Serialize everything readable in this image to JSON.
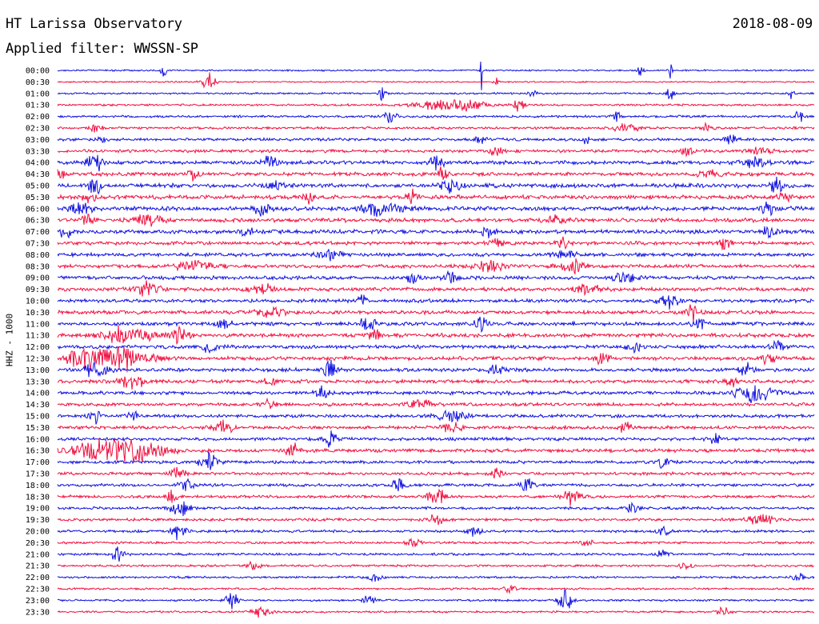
{
  "header": {
    "title": "HT Larissa Observatory",
    "date": "2018-08-09",
    "filter": "Applied filter: WWSSN-SP"
  },
  "chart_data": {
    "type": "line",
    "title": "HT Larissa Observatory",
    "ylabel": "HHZ - 1000",
    "xlabel": "",
    "grid": false,
    "legend": "none",
    "colors": {
      "even_row": "#1010e0",
      "odd_row": "#f01040"
    },
    "rows": [
      {
        "label": "00:00",
        "color": "blue",
        "noise": 0.9,
        "events": [
          [
            0.14,
            12,
            0.4
          ],
          [
            0.56,
            30,
            0.15
          ],
          [
            0.77,
            10,
            0.5
          ],
          [
            0.81,
            14,
            0.3
          ]
        ]
      },
      {
        "label": "00:30",
        "color": "red",
        "noise": 0.8,
        "events": [
          [
            0.2,
            14,
            1.0
          ],
          [
            0.58,
            6,
            0.4
          ]
        ]
      },
      {
        "label": "01:00",
        "color": "blue",
        "noise": 1.0,
        "events": [
          [
            0.43,
            20,
            0.5
          ],
          [
            0.63,
            6,
            0.8
          ],
          [
            0.81,
            12,
            0.6
          ],
          [
            0.97,
            10,
            0.4
          ]
        ]
      },
      {
        "label": "01:30",
        "color": "red",
        "noise": 1.1,
        "events": [
          [
            0.5,
            6,
            4.0
          ],
          [
            0.54,
            8,
            3.0
          ],
          [
            0.61,
            10,
            1.0
          ]
        ]
      },
      {
        "label": "02:00",
        "color": "blue",
        "noise": 1.3,
        "events": [
          [
            0.44,
            10,
            1.0
          ],
          [
            0.74,
            7,
            0.8
          ],
          [
            0.98,
            10,
            0.5
          ]
        ]
      },
      {
        "label": "02:30",
        "color": "red",
        "noise": 1.3,
        "events": [
          [
            0.05,
            6,
            1.0
          ],
          [
            0.75,
            8,
            2.0
          ],
          [
            0.86,
            6,
            1.0
          ]
        ]
      },
      {
        "label": "03:00",
        "color": "blue",
        "noise": 1.6,
        "events": [
          [
            0.06,
            10,
            0.6
          ],
          [
            0.56,
            6,
            0.8
          ],
          [
            0.7,
            10,
            0.6
          ],
          [
            0.89,
            8,
            1.0
          ]
        ]
      },
      {
        "label": "03:30",
        "color": "red",
        "noise": 1.7,
        "events": [
          [
            0.58,
            8,
            1.0
          ],
          [
            0.83,
            8,
            1.0
          ],
          [
            0.93,
            6,
            1.5
          ]
        ]
      },
      {
        "label": "04:00",
        "color": "blue",
        "noise": 2.0,
        "events": [
          [
            0.05,
            14,
            1.2
          ],
          [
            0.28,
            12,
            1.0
          ],
          [
            0.5,
            14,
            1.0
          ],
          [
            0.92,
            10,
            2.0
          ]
        ]
      },
      {
        "label": "04:30",
        "color": "red",
        "noise": 2.0,
        "events": [
          [
            0.0,
            10,
            1.0
          ],
          [
            0.18,
            8,
            1.0
          ],
          [
            0.51,
            10,
            1.0
          ],
          [
            0.86,
            10,
            1.5
          ]
        ]
      },
      {
        "label": "05:00",
        "color": "blue",
        "noise": 2.2,
        "events": [
          [
            0.05,
            12,
            1.0
          ],
          [
            0.29,
            8,
            1.0
          ],
          [
            0.52,
            12,
            1.5
          ],
          [
            0.95,
            12,
            1.0
          ]
        ]
      },
      {
        "label": "05:30",
        "color": "red",
        "noise": 2.2,
        "events": [
          [
            0.04,
            12,
            1.0
          ],
          [
            0.33,
            10,
            1.0
          ],
          [
            0.47,
            12,
            1.0
          ],
          [
            0.96,
            10,
            1.0
          ]
        ]
      },
      {
        "label": "06:00",
        "color": "blue",
        "noise": 2.4,
        "events": [
          [
            0.03,
            12,
            1.5
          ],
          [
            0.27,
            12,
            1.0
          ],
          [
            0.43,
            10,
            3.0
          ],
          [
            0.94,
            10,
            1.0
          ]
        ]
      },
      {
        "label": "06:30",
        "color": "red",
        "noise": 2.2,
        "events": [
          [
            0.04,
            8,
            1.0
          ],
          [
            0.12,
            10,
            2.0
          ],
          [
            0.66,
            8,
            1.5
          ]
        ]
      },
      {
        "label": "07:00",
        "color": "blue",
        "noise": 2.2,
        "events": [
          [
            0.01,
            10,
            1.0
          ],
          [
            0.25,
            8,
            1.0
          ],
          [
            0.57,
            8,
            1.0
          ],
          [
            0.94,
            10,
            1.0
          ]
        ]
      },
      {
        "label": "07:30",
        "color": "red",
        "noise": 2.0,
        "events": [
          [
            0.58,
            10,
            1.0
          ],
          [
            0.67,
            10,
            1.0
          ],
          [
            0.88,
            10,
            1.0
          ]
        ]
      },
      {
        "label": "08:00",
        "color": "blue",
        "noise": 1.9,
        "events": [
          [
            0.36,
            8,
            2.0
          ],
          [
            0.67,
            6,
            2.0
          ]
        ]
      },
      {
        "label": "08:30",
        "color": "red",
        "noise": 2.0,
        "events": [
          [
            0.18,
            8,
            3.0
          ],
          [
            0.57,
            10,
            2.0
          ],
          [
            0.68,
            10,
            2.0
          ]
        ]
      },
      {
        "label": "09:00",
        "color": "blue",
        "noise": 2.0,
        "events": [
          [
            0.47,
            10,
            1.0
          ],
          [
            0.52,
            12,
            1.0
          ],
          [
            0.75,
            8,
            2.0
          ]
        ]
      },
      {
        "label": "09:30",
        "color": "red",
        "noise": 2.0,
        "events": [
          [
            0.12,
            12,
            2.0
          ],
          [
            0.27,
            8,
            2.0
          ],
          [
            0.7,
            8,
            2.0
          ]
        ]
      },
      {
        "label": "10:00",
        "color": "blue",
        "noise": 1.9,
        "events": [
          [
            0.4,
            10,
            1.0
          ],
          [
            0.81,
            12,
            1.5
          ]
        ]
      },
      {
        "label": "10:30",
        "color": "red",
        "noise": 2.0,
        "events": [
          [
            0.28,
            10,
            2.0
          ],
          [
            0.84,
            12,
            1.0
          ]
        ]
      },
      {
        "label": "11:00",
        "color": "blue",
        "noise": 2.0,
        "events": [
          [
            0.22,
            10,
            1.0
          ],
          [
            0.41,
            14,
            1.0
          ],
          [
            0.56,
            12,
            1.0
          ],
          [
            0.85,
            12,
            1.0
          ]
        ]
      },
      {
        "label": "11:30",
        "color": "red",
        "noise": 2.1,
        "events": [
          [
            0.09,
            12,
            4.0
          ],
          [
            0.16,
            14,
            1.5
          ],
          [
            0.42,
            10,
            1.0
          ]
        ]
      },
      {
        "label": "12:00",
        "color": "blue",
        "noise": 2.0,
        "events": [
          [
            0.2,
            10,
            1.0
          ],
          [
            0.76,
            10,
            1.0
          ],
          [
            0.95,
            12,
            1.0
          ]
        ]
      },
      {
        "label": "12:30",
        "color": "red",
        "noise": 2.1,
        "events": [
          [
            0.03,
            14,
            2.0
          ],
          [
            0.08,
            18,
            5.0
          ],
          [
            0.72,
            12,
            1.0
          ],
          [
            0.94,
            10,
            1.0
          ]
        ]
      },
      {
        "label": "13:00",
        "color": "blue",
        "noise": 2.0,
        "events": [
          [
            0.05,
            12,
            2.0
          ],
          [
            0.36,
            12,
            1.0
          ],
          [
            0.58,
            10,
            1.0
          ],
          [
            0.91,
            12,
            1.0
          ]
        ]
      },
      {
        "label": "13:30",
        "color": "red",
        "noise": 1.9,
        "events": [
          [
            0.1,
            10,
            2.0
          ],
          [
            0.28,
            6,
            1.0
          ],
          [
            0.89,
            8,
            1.0
          ]
        ]
      },
      {
        "label": "14:00",
        "color": "blue",
        "noise": 1.9,
        "events": [
          [
            0.35,
            10,
            1.0
          ],
          [
            0.92,
            12,
            3.0
          ]
        ]
      },
      {
        "label": "14:30",
        "color": "red",
        "noise": 1.8,
        "events": [
          [
            0.28,
            8,
            1.0
          ],
          [
            0.48,
            8,
            2.0
          ]
        ]
      },
      {
        "label": "15:00",
        "color": "blue",
        "noise": 1.8,
        "events": [
          [
            0.05,
            10,
            1.0
          ],
          [
            0.1,
            8,
            1.0
          ],
          [
            0.52,
            10,
            2.0
          ]
        ]
      },
      {
        "label": "15:30",
        "color": "red",
        "noise": 1.8,
        "events": [
          [
            0.22,
            10,
            1.5
          ],
          [
            0.52,
            10,
            1.5
          ],
          [
            0.75,
            10,
            1.0
          ]
        ]
      },
      {
        "label": "16:00",
        "color": "blue",
        "noise": 1.8,
        "events": [
          [
            0.36,
            12,
            1.0
          ],
          [
            0.87,
            8,
            1.0
          ]
        ]
      },
      {
        "label": "16:30",
        "color": "red",
        "noise": 1.9,
        "events": [
          [
            0.05,
            12,
            4.0
          ],
          [
            0.1,
            16,
            5.0
          ],
          [
            0.31,
            12,
            1.0
          ]
        ]
      },
      {
        "label": "17:00",
        "color": "blue",
        "noise": 1.7,
        "events": [
          [
            0.2,
            12,
            1.5
          ],
          [
            0.8,
            10,
            1.0
          ]
        ]
      },
      {
        "label": "17:30",
        "color": "red",
        "noise": 1.6,
        "events": [
          [
            0.16,
            12,
            1.0
          ],
          [
            0.58,
            8,
            1.0
          ]
        ]
      },
      {
        "label": "18:00",
        "color": "blue",
        "noise": 1.6,
        "events": [
          [
            0.17,
            14,
            1.0
          ],
          [
            0.45,
            10,
            1.0
          ],
          [
            0.62,
            10,
            1.0
          ]
        ]
      },
      {
        "label": "18:30",
        "color": "red",
        "noise": 1.6,
        "events": [
          [
            0.15,
            12,
            1.0
          ],
          [
            0.5,
            12,
            1.5
          ],
          [
            0.68,
            10,
            1.5
          ]
        ]
      },
      {
        "label": "19:00",
        "color": "blue",
        "noise": 1.5,
        "events": [
          [
            0.16,
            14,
            1.5
          ],
          [
            0.76,
            8,
            1.0
          ]
        ]
      },
      {
        "label": "19:30",
        "color": "red",
        "noise": 1.5,
        "events": [
          [
            0.5,
            10,
            1.0
          ],
          [
            0.93,
            8,
            2.0
          ]
        ]
      },
      {
        "label": "20:00",
        "color": "blue",
        "noise": 1.4,
        "events": [
          [
            0.16,
            12,
            1.0
          ],
          [
            0.55,
            8,
            1.0
          ],
          [
            0.8,
            8,
            1.0
          ]
        ]
      },
      {
        "label": "20:30",
        "color": "red",
        "noise": 1.3,
        "events": [
          [
            0.47,
            8,
            1.0
          ],
          [
            0.7,
            6,
            1.0
          ]
        ]
      },
      {
        "label": "21:00",
        "color": "blue",
        "noise": 1.3,
        "events": [
          [
            0.08,
            12,
            1.0
          ],
          [
            0.8,
            6,
            1.0
          ]
        ]
      },
      {
        "label": "21:30",
        "color": "red",
        "noise": 1.2,
        "events": [
          [
            0.26,
            8,
            1.0
          ],
          [
            0.83,
            6,
            1.0
          ]
        ]
      },
      {
        "label": "22:00",
        "color": "blue",
        "noise": 1.2,
        "events": [
          [
            0.42,
            8,
            1.0
          ],
          [
            0.98,
            6,
            1.0
          ]
        ]
      },
      {
        "label": "22:30",
        "color": "red",
        "noise": 1.1,
        "events": [
          [
            0.6,
            6,
            1.0
          ]
        ]
      },
      {
        "label": "23:00",
        "color": "blue",
        "noise": 1.1,
        "events": [
          [
            0.23,
            12,
            1.0
          ],
          [
            0.41,
            10,
            1.0
          ],
          [
            0.67,
            20,
            1.0
          ]
        ]
      },
      {
        "label": "23:30",
        "color": "red",
        "noise": 1.1,
        "events": [
          [
            0.27,
            8,
            1.5
          ],
          [
            0.88,
            8,
            1.0
          ]
        ]
      }
    ]
  }
}
